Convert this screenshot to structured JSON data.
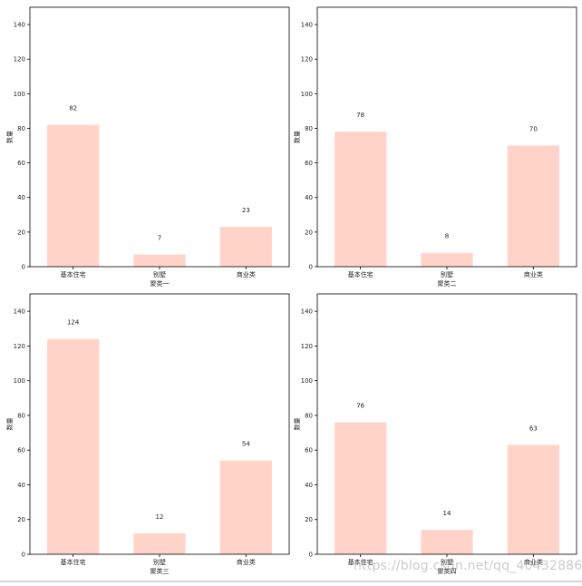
{
  "chart_data": [
    {
      "type": "bar",
      "categories": [
        "基本住宅",
        "别墅",
        "商业类"
      ],
      "values": [
        82,
        7,
        23
      ],
      "xlabel": "聚类一",
      "ylabel": "数量",
      "ylim": [
        0,
        150
      ],
      "yticks": [
        0,
        20,
        40,
        60,
        80,
        100,
        120,
        140
      ],
      "grid": false
    },
    {
      "type": "bar",
      "categories": [
        "基本住宅",
        "别墅",
        "商业类"
      ],
      "values": [
        78,
        8,
        70
      ],
      "xlabel": "聚类二",
      "ylabel": "数量",
      "ylim": [
        0,
        150
      ],
      "yticks": [
        0,
        20,
        40,
        60,
        80,
        100,
        120,
        140
      ],
      "grid": false
    },
    {
      "type": "bar",
      "categories": [
        "基本住宅",
        "别墅",
        "商业类"
      ],
      "values": [
        124,
        12,
        54
      ],
      "xlabel": "聚类三",
      "ylabel": "数量",
      "ylim": [
        0,
        150
      ],
      "yticks": [
        0,
        20,
        40,
        60,
        80,
        100,
        120,
        140
      ],
      "grid": false
    },
    {
      "type": "bar",
      "categories": [
        "基本住宅",
        "别墅",
        "商业类"
      ],
      "values": [
        76,
        14,
        63
      ],
      "xlabel": "聚类四",
      "ylabel": "数量",
      "ylim": [
        0,
        150
      ],
      "yticks": [
        0,
        20,
        40,
        60,
        80,
        100,
        120,
        140
      ],
      "grid": false
    }
  ],
  "colors": {
    "bar": "#ffd3c8",
    "axis": "#000000",
    "text": "#222222"
  },
  "watermark": "https://blog.csdn.net/qq_40432886"
}
